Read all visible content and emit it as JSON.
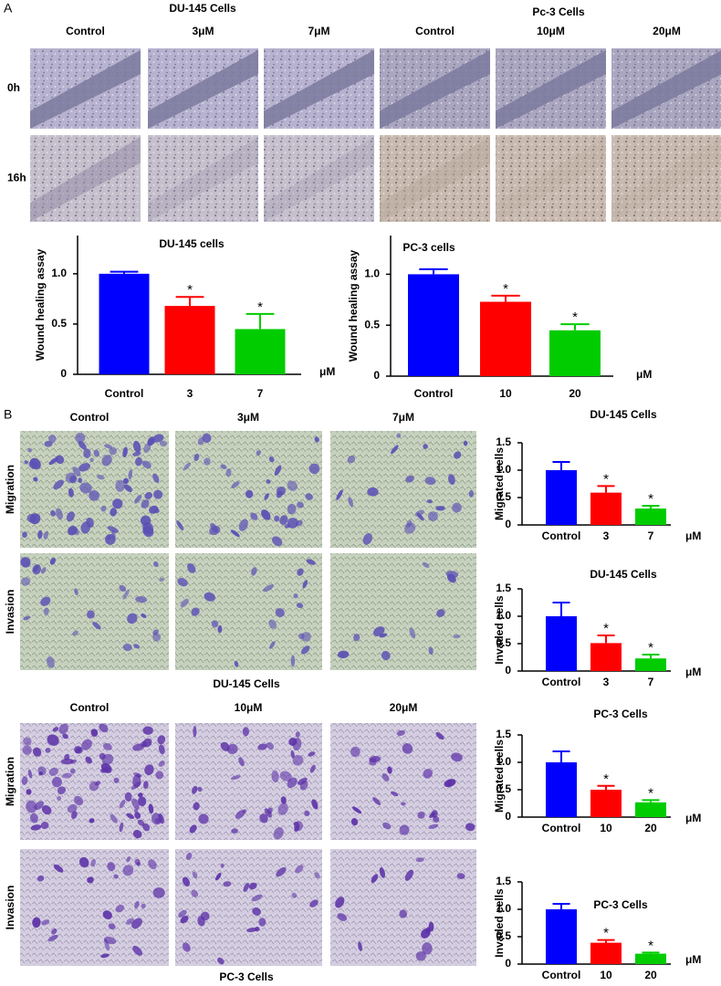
{
  "panel_a": {
    "label": "A",
    "groups": [
      "DU-145 Cells",
      "Pc-3 Cells"
    ],
    "columns": [
      "Control",
      "3μM",
      "7μM",
      "Control",
      "10μM",
      "20μM"
    ],
    "rows": [
      "0h",
      "16h"
    ]
  },
  "panel_b": {
    "label": "B",
    "sets": [
      {
        "columns": [
          "Control",
          "3μM",
          "7μM"
        ],
        "rows": [
          "Migration",
          "Invasion"
        ],
        "caption": "DU-145 Cells"
      },
      {
        "columns": [
          "Control",
          "10μM",
          "20μM"
        ],
        "rows": [
          "Migration",
          "Invasion"
        ],
        "caption": "PC-3 Cells"
      }
    ]
  },
  "chart_data": [
    {
      "type": "bar",
      "title": "DU-145  cells",
      "y_label": "Wound healing assay",
      "x_unit": "μM",
      "categories": [
        "Control",
        "3",
        "7"
      ],
      "values": [
        1.0,
        0.68,
        0.45
      ],
      "errors": [
        0.02,
        0.09,
        0.15
      ],
      "colors": [
        "#0000ff",
        "#ff0000",
        "#00cc00"
      ],
      "ylim": [
        0,
        1.38
      ],
      "yticks": [
        0,
        0.5,
        {
          "value": 1,
          "label": "1.0"
        }
      ],
      "annotations": [
        "*",
        "*"
      ]
    },
    {
      "type": "bar",
      "title": "PC-3 cells",
      "y_label": "Wound healing assay",
      "x_unit": "μM",
      "categories": [
        "Control",
        "10",
        "20"
      ],
      "values": [
        1.0,
        0.73,
        0.45
      ],
      "errors": [
        0.05,
        0.06,
        0.06
      ],
      "colors": [
        "#0000ff",
        "#ff0000",
        "#00cc00"
      ],
      "ylim": [
        0,
        1.38
      ],
      "yticks": [
        0,
        0.5,
        {
          "value": 1,
          "label": "1.0"
        }
      ],
      "annotations": [
        "*",
        "*"
      ]
    },
    {
      "type": "bar",
      "title": "DU-145 Cells",
      "y_label": "Migrated cells",
      "x_unit": "μM",
      "categories": [
        "Control",
        "3",
        "7"
      ],
      "values": [
        1.0,
        0.59,
        0.3
      ],
      "errors": [
        0.15,
        0.12,
        0.05
      ],
      "colors": [
        "#0000ff",
        "#ff0000",
        "#00cc00"
      ],
      "ylim": [
        0,
        1.5
      ],
      "yticks": [
        0,
        0.5,
        {
          "value": 1,
          "label": "1.0"
        },
        1.5
      ],
      "annotations": [
        "*",
        "*"
      ]
    },
    {
      "type": "bar",
      "title": "DU-145 Cells",
      "y_label": "Invaded cells",
      "x_unit": "μM",
      "categories": [
        "Control",
        "3",
        "7"
      ],
      "values": [
        1.0,
        0.51,
        0.23
      ],
      "errors": [
        0.25,
        0.14,
        0.07
      ],
      "colors": [
        "#0000ff",
        "#ff0000",
        "#00cc00"
      ],
      "ylim": [
        0,
        1.5
      ],
      "yticks": [
        0,
        0.5,
        {
          "value": 1,
          "label": "1.0"
        },
        1.5
      ],
      "annotations": [
        "*",
        "*"
      ]
    },
    {
      "type": "bar",
      "title": "PC-3 Cells",
      "y_label": "Migrated cells",
      "x_unit": "μM",
      "categories": [
        "Control",
        "10",
        "20"
      ],
      "values": [
        1.0,
        0.5,
        0.27
      ],
      "errors": [
        0.2,
        0.07,
        0.04
      ],
      "colors": [
        "#0000ff",
        "#ff0000",
        "#00cc00"
      ],
      "ylim": [
        0,
        1.5
      ],
      "yticks": [
        0,
        0.5,
        {
          "value": 1,
          "label": "1.0"
        },
        1.5
      ],
      "annotations": [
        "*",
        "*"
      ]
    },
    {
      "type": "bar",
      "title": "PC-3 Cells",
      "y_label": "Invaded cells",
      "x_unit": "μM",
      "categories": [
        "Control",
        "10",
        "20"
      ],
      "values": [
        1.0,
        0.39,
        0.19
      ],
      "errors": [
        0.1,
        0.05,
        0.02
      ],
      "colors": [
        "#0000ff",
        "#ff0000",
        "#00cc00"
      ],
      "ylim": [
        0,
        1.5
      ],
      "yticks": [
        0,
        0.5,
        {
          "value": 1,
          "label": "1.0"
        },
        1.5
      ],
      "annotations": [
        "*",
        "*"
      ]
    }
  ]
}
